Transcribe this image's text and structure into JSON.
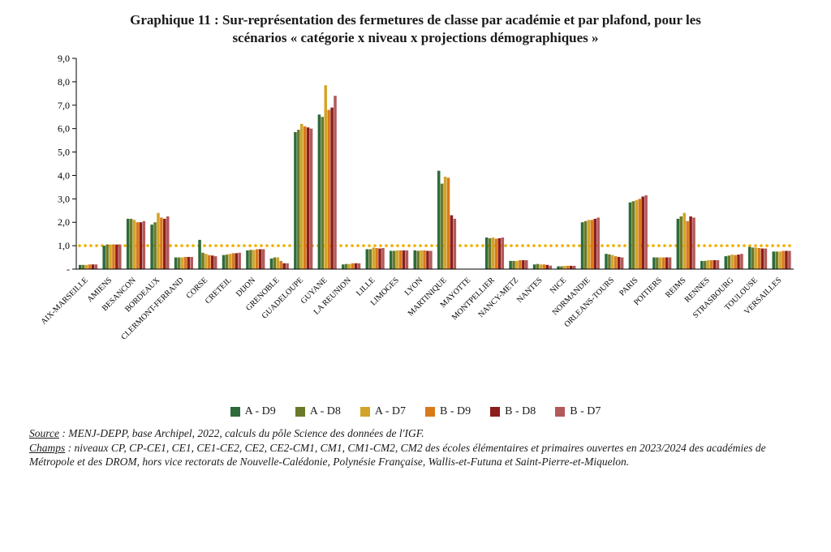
{
  "title_line1": "Graphique 11 : Sur-représentation des fermetures de classe par académie et par plafond, pour les",
  "title_line2": "scénarios « catégorie x niveau x projections démographiques »",
  "chart": {
    "type": "bar",
    "ylim": [
      0,
      9
    ],
    "ytick_step": 1,
    "y_tick_labels": [
      "-",
      "1,0",
      "2,0",
      "3,0",
      "4,0",
      "5,0",
      "6,0",
      "7,0",
      "8,0",
      "9,0"
    ],
    "reference_line_y": 1.0,
    "reference_line_color": "#f0b000",
    "background_color": "#ffffff",
    "axis_color": "#000000",
    "tick_font_size": 12,
    "category_font_size": 10,
    "category_rotation_deg": -45,
    "categories": [
      "AIX-MARSEILLE",
      "AMIENS",
      "BESANCON",
      "BORDEAUX",
      "CLERMONT-FERRAND",
      "CORSE",
      "CRETEIL",
      "DIJON",
      "GRENOBLE",
      "GUADELOUPE",
      "GUYANE",
      "LA REUNION",
      "LILLE",
      "LIMOGES",
      "LYON",
      "MARTINIQUE",
      "MAYOTTE",
      "MONTPELLIER",
      "NANCY-METZ",
      "NANTES",
      "NICE",
      "NORMANDIE",
      "ORLEANS-TOURS",
      "PARIS",
      "POITIERS",
      "REIMS",
      "RENNES",
      "STRASBOURG",
      "TOULOUSE",
      "VERSAILLES"
    ],
    "series": [
      {
        "name": "A - D9",
        "color": "#2e6b3a",
        "values": [
          0.18,
          1.0,
          2.15,
          1.9,
          0.5,
          1.25,
          0.6,
          0.8,
          0.45,
          5.85,
          6.6,
          0.2,
          0.85,
          0.78,
          0.8,
          4.2,
          0.0,
          1.35,
          0.35,
          0.2,
          0.12,
          2.0,
          0.65,
          2.85,
          0.5,
          2.15,
          0.35,
          0.55,
          0.95,
          0.75
        ]
      },
      {
        "name": "A - D8",
        "color": "#6b7a2a",
        "values": [
          0.18,
          1.05,
          2.15,
          2.0,
          0.5,
          0.7,
          0.62,
          0.82,
          0.5,
          5.95,
          6.5,
          0.22,
          0.85,
          0.78,
          0.78,
          3.65,
          0.0,
          1.32,
          0.35,
          0.22,
          0.12,
          2.05,
          0.63,
          2.9,
          0.5,
          2.25,
          0.35,
          0.58,
          0.92,
          0.75
        ]
      },
      {
        "name": "A - D7",
        "color": "#d2a52a",
        "values": [
          0.18,
          1.05,
          2.1,
          2.4,
          0.5,
          0.65,
          0.65,
          0.82,
          0.5,
          6.2,
          7.85,
          0.22,
          0.92,
          0.8,
          0.8,
          3.95,
          0.0,
          1.35,
          0.35,
          0.2,
          0.14,
          2.1,
          0.6,
          2.95,
          0.5,
          2.4,
          0.38,
          0.62,
          0.92,
          0.75
        ]
      },
      {
        "name": "B - D9",
        "color": "#d97a1a",
        "values": [
          0.2,
          1.05,
          2.0,
          2.2,
          0.52,
          0.6,
          0.68,
          0.85,
          0.35,
          6.1,
          6.8,
          0.25,
          0.9,
          0.8,
          0.8,
          3.9,
          0.0,
          1.3,
          0.38,
          0.2,
          0.14,
          2.1,
          0.55,
          3.0,
          0.5,
          2.05,
          0.38,
          0.6,
          0.9,
          0.78
        ]
      },
      {
        "name": "B - D8",
        "color": "#8c1d1d",
        "values": [
          0.2,
          1.05,
          2.0,
          2.15,
          0.52,
          0.58,
          0.68,
          0.85,
          0.25,
          6.05,
          6.9,
          0.25,
          0.88,
          0.8,
          0.78,
          2.3,
          0.0,
          1.32,
          0.38,
          0.18,
          0.14,
          2.15,
          0.52,
          3.1,
          0.5,
          2.25,
          0.38,
          0.62,
          0.88,
          0.78
        ]
      },
      {
        "name": "B - D7",
        "color": "#b25a5a",
        "values": [
          0.2,
          1.05,
          2.05,
          2.25,
          0.52,
          0.55,
          0.7,
          0.85,
          0.25,
          6.0,
          7.4,
          0.25,
          0.9,
          0.8,
          0.78,
          2.15,
          0.0,
          1.35,
          0.38,
          0.15,
          0.14,
          2.2,
          0.5,
          3.15,
          0.5,
          2.2,
          0.38,
          0.65,
          0.88,
          0.78
        ]
      }
    ]
  },
  "legend_font_size": 14,
  "source": {
    "label": "Source",
    "text": " : MENJ-DEPP, base Archipel, 2022, calculs du pôle Science des données de l'IGF."
  },
  "champs": {
    "label": "Champs",
    "text": " : niveaux CP, CP-CE1, CE1, CE1-CE2, CE2, CE2-CM1, CM1, CM1-CM2, CM2 des écoles élémentaires et primaires ouvertes en 2023/2024 des académies de Métropole et des DROM, hors vice rectorats de Nouvelle-Calédonie, Polynésie Française, Wallis-et-Futuna et Saint-Pierre-et-Miquelon."
  }
}
